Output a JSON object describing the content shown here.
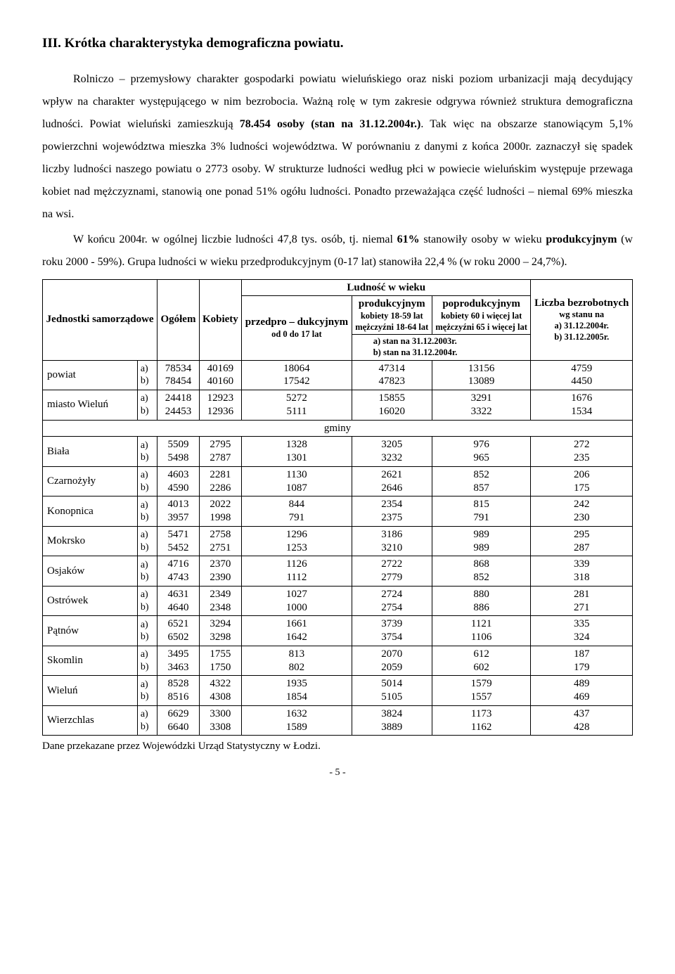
{
  "heading": "III. Krótka charakterystyka demograficzna powiatu.",
  "para1": "Rolniczo – przemysłowy charakter gospodarki powiatu wieluńskiego oraz niski poziom urbanizacji mają decydujący wpływ na charakter występującego w nim bezrobocia. Ważną rolę w tym zakresie odgrywa również struktura demograficzna ludności. Powiat wieluński zamieszkują ",
  "para1_bold": "78.454 osoby (stan na 31.12.2004r.)",
  "para1_cont": ". Tak więc na obszarze stanowiącym 5,1% powierzchni województwa mieszka 3% ludności województwa. W porównaniu z danymi z końca 2000r. zaznaczył się spadek liczby ludności naszego powiatu o 2773 osoby. W strukturze ludności według płci w powiecie wieluńskim występuje przewaga kobiet nad mężczyznami, stanowią one ponad 51% ogółu ludności. Ponadto przeważająca część ludności – niemal 69% mieszka na wsi.",
  "para2_a": "W końcu 2004r. w ogólnej liczbie ludności 47,8 tys. osób, tj. niemal ",
  "para2_bold1": "61%",
  "para2_b": " stanowiły osoby w wieku ",
  "para2_bold2": "produkcyjnym",
  "para2_c": " (w roku 2000 - 59%). Grupa ludności w wieku przedprodukcyjnym (0-17 lat) stanowiła 22,4 % (w roku 2000 – 24,7%).",
  "table": {
    "hdr_jednostki": "Jednostki samorządowe",
    "hdr_ogolem": "Ogółem",
    "hdr_kobiety": "Kobiety",
    "hdr_ludnosc": "Ludność w wieku",
    "hdr_przedpro": "przedpro – dukcyjnym",
    "hdr_przedpro_sub": "od 0 do 17 lat",
    "hdr_prod": "produkcyjnym",
    "hdr_prod_sub1": "kobiety 18-59 lat",
    "hdr_prod_sub2": "mężczyźni 18-64 lat",
    "hdr_poprod": "poprodukcyjnym",
    "hdr_poprod_sub1": "kobiety 60 i więcej lat",
    "hdr_poprod_sub2": "mężczyźni 65 i więcej lat",
    "stan_a": "a)   stan na 31.12.2003r.",
    "stan_b": "b)   stan na 31.12.2004r.",
    "hdr_liczba": "Liczba bezrobotnych",
    "hdr_liczba_sub": "wg stanu na",
    "hdr_liczba_a": "a) 31.12.2004r.",
    "hdr_liczba_b": "b) 31.12.2005r.",
    "gminy": "gminy",
    "rows_top": [
      {
        "label": "powiat",
        "ab": "a)\nb)",
        "c1": "78534\n78454",
        "c2": "40169\n40160",
        "c3": "18064\n17542",
        "c4": "47314\n47823",
        "c5": "13156\n13089",
        "c6": "4759\n4450"
      },
      {
        "label": "miasto Wieluń",
        "ab": "a)\nb)",
        "c1": "24418\n24453",
        "c2": "12923\n12936",
        "c3": "5272\n5111",
        "c4": "15855\n16020",
        "c5": "3291\n3322",
        "c6": "1676\n1534"
      }
    ],
    "rows_gminy": [
      {
        "label": "Biała",
        "ab": "a)\nb)",
        "c1": "5509\n5498",
        "c2": "2795\n2787",
        "c3": "1328\n1301",
        "c4": "3205\n3232",
        "c5": "976\n965",
        "c6": "272\n235"
      },
      {
        "label": "Czarnożyły",
        "ab": "a)\nb)",
        "c1": "4603\n4590",
        "c2": "2281\n2286",
        "c3": "1130\n1087",
        "c4": "2621\n2646",
        "c5": "852\n857",
        "c6": "206\n175"
      },
      {
        "label": "Konopnica",
        "ab": "a)\nb)",
        "c1": "4013\n3957",
        "c2": "2022\n1998",
        "c3": "844\n791",
        "c4": "2354\n2375",
        "c5": "815\n791",
        "c6": "242\n230"
      },
      {
        "label": "Mokrsko",
        "ab": "a)\nb)",
        "c1": "5471\n5452",
        "c2": "2758\n2751",
        "c3": "1296\n1253",
        "c4": "3186\n3210",
        "c5": "989\n989",
        "c6": "295\n287"
      },
      {
        "label": "Osjaków",
        "ab": "a)\nb)",
        "c1": "4716\n4743",
        "c2": "2370\n2390",
        "c3": "1126\n1112",
        "c4": "2722\n2779",
        "c5": "868\n852",
        "c6": "339\n318"
      },
      {
        "label": "Ostrówek",
        "ab": "a)\nb)",
        "c1": "4631\n4640",
        "c2": "2349\n2348",
        "c3": "1027\n1000",
        "c4": "2724\n2754",
        "c5": "880\n886",
        "c6": "281\n271"
      },
      {
        "label": "Pątnów",
        "ab": "a)\nb)",
        "c1": "6521\n6502",
        "c2": "3294\n3298",
        "c3": "1661\n1642",
        "c4": "3739\n3754",
        "c5": "1121\n1106",
        "c6": "335\n324"
      },
      {
        "label": "Skomlin",
        "ab": "a)\nb)",
        "c1": "3495\n3463",
        "c2": "1755\n1750",
        "c3": "813\n802",
        "c4": "2070\n2059",
        "c5": "612\n602",
        "c6": "187\n179"
      },
      {
        "label": "Wieluń",
        "ab": "a)\nb)",
        "c1": "8528\n8516",
        "c2": "4322\n4308",
        "c3": "1935\n1854",
        "c4": "5014\n5105",
        "c5": "1579\n1557",
        "c6": "489\n469"
      },
      {
        "label": "Wierzchlas",
        "ab": "a)\nb)",
        "c1": "6629\n6640",
        "c2": "3300\n3308",
        "c3": "1632\n1589",
        "c4": "3824\n3889",
        "c5": "1173\n1162",
        "c6": "437\n428"
      }
    ]
  },
  "footer": "Dane przekazane przez Wojewódzki Urząd Statystyczny w Łodzi.",
  "pagenum": "- 5 -"
}
